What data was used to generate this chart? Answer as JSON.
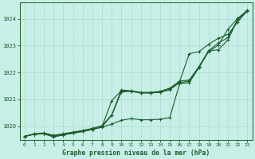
{
  "title": "Graphe pression niveau de la mer (hPa)",
  "background_color": "#c8eee8",
  "grid_color": "#aaddcc",
  "line_color": "#1a5c2a",
  "x_labels": [
    "0",
    "1",
    "2",
    "3",
    "4",
    "5",
    "6",
    "7",
    "8",
    "9",
    "10",
    "11",
    "12",
    "13",
    "14",
    "15",
    "16",
    "17",
    "18",
    "19",
    "20",
    "21",
    "22",
    "23"
  ],
  "ylim": [
    1019.5,
    1024.6
  ],
  "yticks": [
    1020,
    1021,
    1022,
    1023,
    1024
  ],
  "line1": [
    1019.62,
    1019.7,
    1019.72,
    1019.63,
    1019.7,
    1019.76,
    1019.82,
    1019.88,
    1019.96,
    1020.08,
    1020.22,
    1020.28,
    1020.24,
    1020.24,
    1020.26,
    1020.32,
    1021.58,
    1021.62,
    1022.18,
    1022.78,
    1023.02,
    1023.62,
    1024.02,
    1024.32
  ],
  "line2": [
    1019.62,
    1019.7,
    1019.72,
    1019.6,
    1019.68,
    1019.74,
    1019.8,
    1019.88,
    1019.98,
    1020.4,
    1021.28,
    1021.3,
    1021.24,
    1021.24,
    1021.26,
    1021.36,
    1021.62,
    1021.68,
    1022.2,
    1022.8,
    1022.85,
    1023.22,
    1023.98,
    1024.28
  ],
  "line3": [
    1019.62,
    1019.7,
    1019.72,
    1019.6,
    1019.68,
    1019.74,
    1019.8,
    1019.88,
    1019.98,
    1020.95,
    1021.32,
    1021.3,
    1021.24,
    1021.24,
    1021.28,
    1021.38,
    1021.65,
    1022.7,
    1022.78,
    1023.05,
    1023.28,
    1023.42,
    1023.88,
    1024.32
  ],
  "line4": [
    1019.62,
    1019.72,
    1019.75,
    1019.66,
    1019.72,
    1019.78,
    1019.84,
    1019.92,
    1020.02,
    1020.42,
    1021.35,
    1021.32,
    1021.26,
    1021.26,
    1021.3,
    1021.42,
    1021.68,
    1021.72,
    1022.22,
    1022.82,
    1023.1,
    1023.3,
    1023.98,
    1024.32
  ]
}
